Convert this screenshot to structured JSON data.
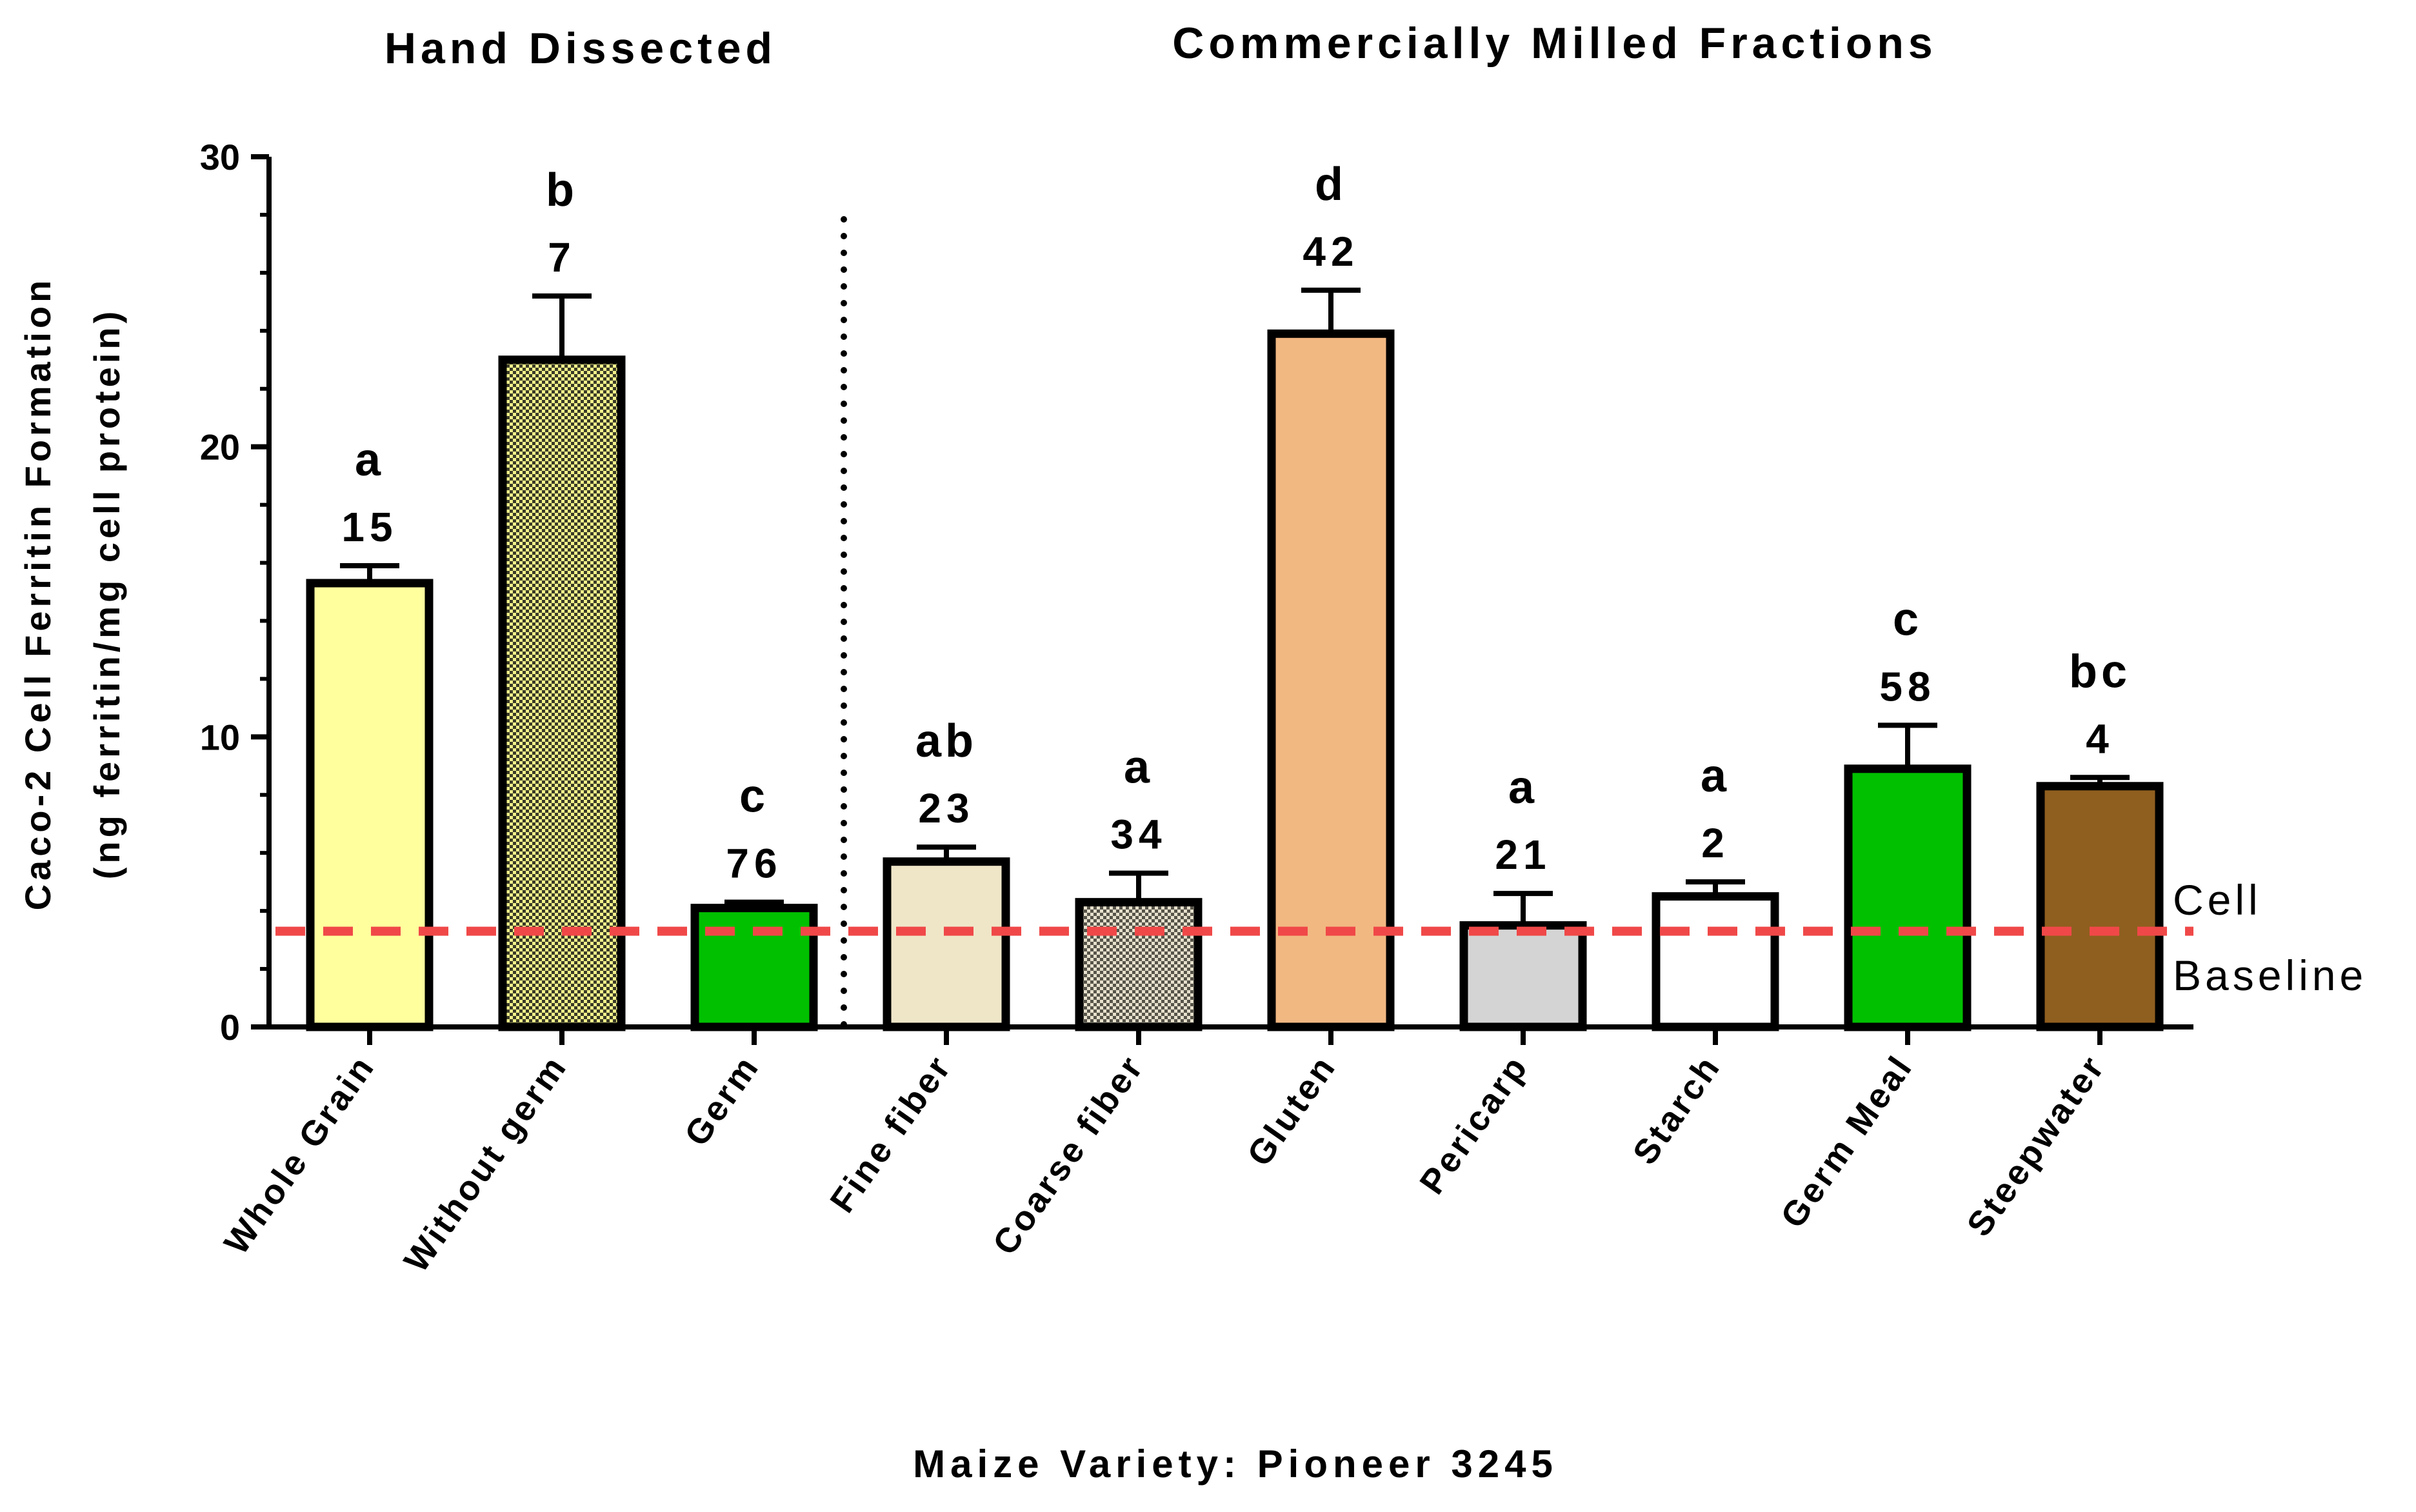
{
  "chart_data": {
    "type": "bar",
    "group_titles": [
      "Hand Dissected",
      "Commercially Milled Fractions"
    ],
    "categories": [
      "Whole Grain",
      "Without germ",
      "Germ",
      "Fine fiber",
      "Coarse fiber",
      "Gluten",
      "Pericarp",
      "Starch",
      "Germ Meal",
      "Steepwater"
    ],
    "values": [
      15.3,
      23.0,
      4.1,
      5.7,
      4.3,
      23.9,
      3.5,
      4.5,
      8.9,
      8.3
    ],
    "errors": [
      0.6,
      2.2,
      0.2,
      0.5,
      1.0,
      1.5,
      1.1,
      0.5,
      1.5,
      0.3
    ],
    "n_labels": [
      "15",
      "7",
      "76",
      "23",
      "34",
      "42",
      "21",
      "2",
      "58",
      "4"
    ],
    "letters": [
      "a",
      "b",
      "c",
      "ab",
      "a",
      "d",
      "a",
      "a",
      "c",
      "bc"
    ],
    "colors": [
      "#ffff9e",
      "#f2f28a",
      "#00c000",
      "#efe6c8",
      "#d9d3c0",
      "#f2b882",
      "#d4d4d4",
      "#ffffff",
      "#00c000",
      "#8f5f1f"
    ],
    "patterned": [
      false,
      true,
      false,
      false,
      true,
      false,
      false,
      false,
      false,
      false
    ],
    "ylabel_line1": "Caco-2 Cell Ferritin  Formation",
    "ylabel_line2": "(ng ferritin/mg cell protein)",
    "xlabel": "Maize Variety: Pioneer 3245",
    "ylim": [
      0,
      30
    ],
    "yticks": [
      "0",
      "10",
      "20",
      "30"
    ],
    "baseline_value": 3.3,
    "baseline_label_line1": "Cell",
    "baseline_label_line2": "Baseline",
    "baseline_color": "#f04848",
    "group_divider_after_index": 2
  }
}
